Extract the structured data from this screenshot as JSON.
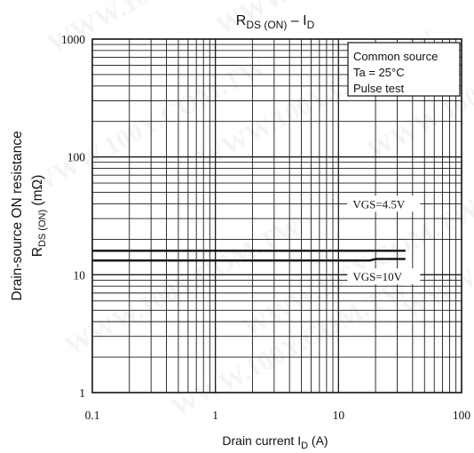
{
  "chart_data": {
    "type": "line",
    "title_main": "R",
    "title_sub": "DS (ON)",
    "title_mid": " – I",
    "title_sub2": "D",
    "xlabel_main": "Drain current   I",
    "xlabel_sub": "D",
    "xlabel_unit": "   (A)",
    "ylabel_line1": "Drain-source ON resistance",
    "ylabel_line2_main": "R",
    "ylabel_line2_sub": "DS (ON)",
    "ylabel_line2_unit": "   (mΩ)",
    "x_scale": "log",
    "y_scale": "log",
    "xlim": [
      0.1,
      100
    ],
    "ylim": [
      1,
      1000
    ],
    "x_ticks": [
      0.1,
      1,
      10,
      100
    ],
    "x_tick_labels": [
      "0.1",
      "1",
      "10",
      "100"
    ],
    "y_ticks": [
      1,
      10,
      100,
      1000
    ],
    "y_tick_labels": [
      "1",
      "10",
      "100",
      "1000"
    ],
    "grid": true,
    "legend_box": {
      "position": "top-right",
      "lines": [
        "Common source",
        "Ta = 25°C",
        "Pulse test"
      ]
    },
    "series": [
      {
        "name": "VGS=4.5V",
        "x": [
          0.1,
          35
        ],
        "y": [
          16,
          16
        ]
      },
      {
        "name": "VGS=10V",
        "x": [
          0.1,
          18,
          20,
          35
        ],
        "y": [
          13.2,
          13.2,
          13.6,
          13.6
        ]
      }
    ],
    "line_color": "#111111",
    "grid_color": "#1a1a1a"
  },
  "watermark": "WWW.100Y.COM.TW"
}
